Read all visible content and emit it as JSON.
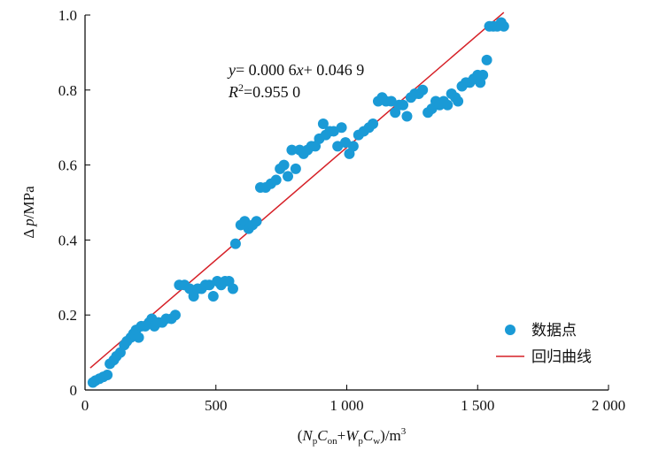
{
  "chart_data": {
    "type": "scatter",
    "xlabel": {
      "open": "(",
      "N": "N",
      "p1": "p",
      "C1": "C",
      "on": "on",
      "plus": "+",
      "W": "W",
      "p2": "p",
      "C2": "C",
      "w": "w",
      "close": ")/m",
      "exp": "3"
    },
    "ylabel": {
      "delta": "Δ",
      "p": "p",
      "unit": "/MPa"
    },
    "xlim": [
      0,
      2000
    ],
    "ylim": [
      0,
      1.0
    ],
    "x_ticks": [
      0,
      500,
      1000,
      1500,
      2000
    ],
    "x_tick_labels": [
      "0",
      "500",
      "1 000",
      "1 500",
      "2 000"
    ],
    "y_ticks": [
      0,
      0.2,
      0.4,
      0.6,
      0.8,
      1.0
    ],
    "y_tick_labels": [
      "0",
      "0.2",
      "0.4",
      "0.6",
      "0.8",
      "1.0"
    ],
    "annotation": {
      "equation": {
        "y": "y",
        "eq1": "= 0.000 6",
        "x": "x",
        "eq2": "+ 0.046 9"
      },
      "r2": {
        "R": "R",
        "sup": "2",
        "val": "=0.955 0"
      }
    },
    "fit": {
      "slope": 0.0006,
      "intercept": 0.0469
    },
    "legend": {
      "placement": "bottom-right",
      "points_label": "数据点",
      "line_label": "回归曲线"
    },
    "colors": {
      "points": "#1a9ad6",
      "line": "#d62027",
      "axis": "#000000"
    },
    "series": [
      {
        "name": "数据点",
        "points": [
          [
            30,
            0.02
          ],
          [
            40,
            0.025
          ],
          [
            55,
            0.03
          ],
          [
            70,
            0.035
          ],
          [
            85,
            0.04
          ],
          [
            95,
            0.07
          ],
          [
            110,
            0.08
          ],
          [
            120,
            0.09
          ],
          [
            135,
            0.1
          ],
          [
            150,
            0.12
          ],
          [
            160,
            0.13
          ],
          [
            175,
            0.14
          ],
          [
            185,
            0.15
          ],
          [
            195,
            0.16
          ],
          [
            205,
            0.14
          ],
          [
            215,
            0.17
          ],
          [
            230,
            0.17
          ],
          [
            245,
            0.18
          ],
          [
            255,
            0.19
          ],
          [
            265,
            0.17
          ],
          [
            280,
            0.18
          ],
          [
            295,
            0.18
          ],
          [
            310,
            0.19
          ],
          [
            330,
            0.19
          ],
          [
            345,
            0.2
          ],
          [
            360,
            0.28
          ],
          [
            380,
            0.28
          ],
          [
            400,
            0.27
          ],
          [
            415,
            0.25
          ],
          [
            430,
            0.27
          ],
          [
            445,
            0.27
          ],
          [
            460,
            0.28
          ],
          [
            475,
            0.28
          ],
          [
            490,
            0.25
          ],
          [
            505,
            0.29
          ],
          [
            520,
            0.28
          ],
          [
            535,
            0.29
          ],
          [
            550,
            0.29
          ],
          [
            565,
            0.27
          ],
          [
            575,
            0.39
          ],
          [
            595,
            0.44
          ],
          [
            610,
            0.45
          ],
          [
            625,
            0.43
          ],
          [
            640,
            0.44
          ],
          [
            655,
            0.45
          ],
          [
            670,
            0.54
          ],
          [
            690,
            0.54
          ],
          [
            710,
            0.55
          ],
          [
            730,
            0.56
          ],
          [
            745,
            0.59
          ],
          [
            760,
            0.6
          ],
          [
            775,
            0.57
          ],
          [
            790,
            0.64
          ],
          [
            805,
            0.59
          ],
          [
            820,
            0.64
          ],
          [
            835,
            0.63
          ],
          [
            850,
            0.64
          ],
          [
            865,
            0.65
          ],
          [
            880,
            0.65
          ],
          [
            895,
            0.67
          ],
          [
            910,
            0.71
          ],
          [
            920,
            0.68
          ],
          [
            935,
            0.69
          ],
          [
            950,
            0.69
          ],
          [
            965,
            0.65
          ],
          [
            980,
            0.7
          ],
          [
            995,
            0.66
          ],
          [
            1010,
            0.63
          ],
          [
            1025,
            0.65
          ],
          [
            1045,
            0.68
          ],
          [
            1065,
            0.69
          ],
          [
            1085,
            0.7
          ],
          [
            1100,
            0.71
          ],
          [
            1120,
            0.77
          ],
          [
            1135,
            0.78
          ],
          [
            1150,
            0.77
          ],
          [
            1170,
            0.77
          ],
          [
            1185,
            0.74
          ],
          [
            1200,
            0.76
          ],
          [
            1215,
            0.76
          ],
          [
            1230,
            0.73
          ],
          [
            1245,
            0.78
          ],
          [
            1260,
            0.79
          ],
          [
            1275,
            0.79
          ],
          [
            1290,
            0.8
          ],
          [
            1310,
            0.74
          ],
          [
            1325,
            0.75
          ],
          [
            1340,
            0.77
          ],
          [
            1355,
            0.76
          ],
          [
            1370,
            0.77
          ],
          [
            1385,
            0.76
          ],
          [
            1400,
            0.79
          ],
          [
            1415,
            0.78
          ],
          [
            1425,
            0.77
          ],
          [
            1440,
            0.81
          ],
          [
            1455,
            0.82
          ],
          [
            1470,
            0.82
          ],
          [
            1485,
            0.83
          ],
          [
            1500,
            0.84
          ],
          [
            1510,
            0.82
          ],
          [
            1520,
            0.84
          ],
          [
            1535,
            0.88
          ],
          [
            1545,
            0.97
          ],
          [
            1560,
            0.97
          ],
          [
            1575,
            0.97
          ],
          [
            1590,
            0.98
          ],
          [
            1600,
            0.97
          ]
        ]
      },
      {
        "name": "回归曲线",
        "line": {
          "x": [
            20,
            1600
          ]
        }
      }
    ]
  }
}
